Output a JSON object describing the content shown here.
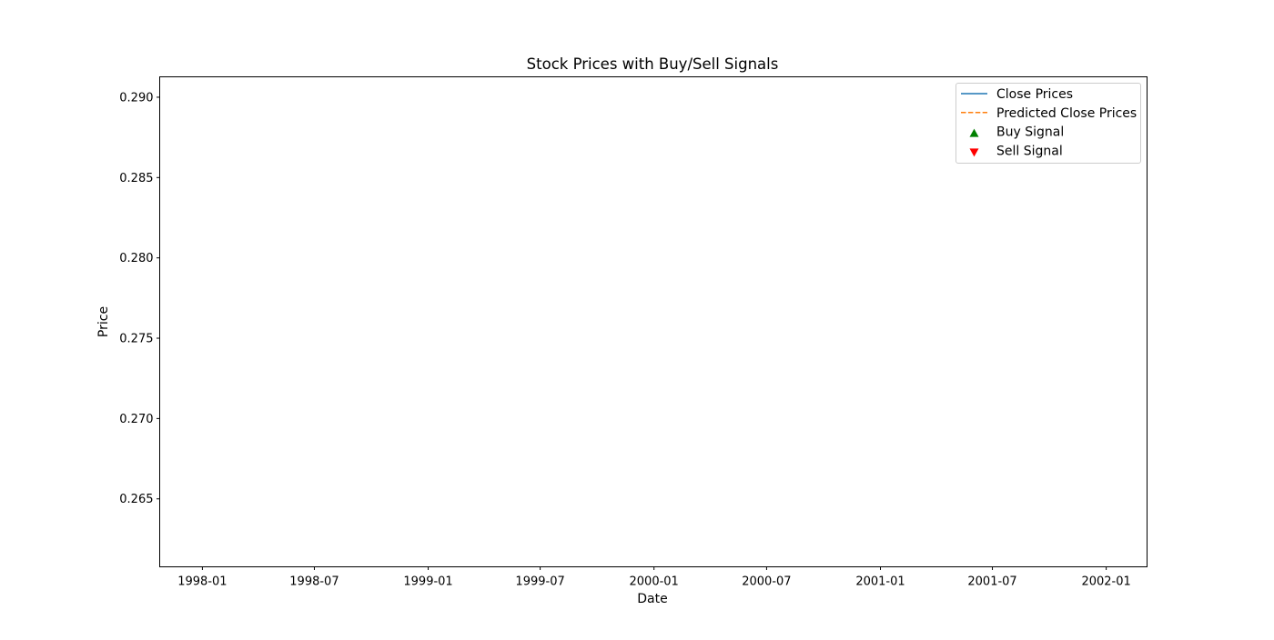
{
  "chart_data": {
    "type": "line",
    "title": "Stock Prices with Buy/Sell Signals",
    "xlabel": "Date",
    "ylabel": "Price",
    "x_axis_type": "date",
    "xlim": [
      "1997-10-24",
      "2002-03-08"
    ],
    "ylim": [
      0.26077,
      0.29127
    ],
    "x_ticks": [
      "1998-01",
      "1998-07",
      "1999-01",
      "1999-07",
      "2000-01",
      "2000-07",
      "2001-01",
      "2001-07",
      "2002-01"
    ],
    "y_ticks": [
      "0.265",
      "0.270",
      "0.275",
      "0.280",
      "0.285",
      "0.290"
    ],
    "grid": false,
    "legend_position": "top-right",
    "series": [
      {
        "name": "Close Prices",
        "kind": "line",
        "style": "solid",
        "color": "#1f77b4",
        "x": [],
        "y": []
      },
      {
        "name": "Predicted Close Prices",
        "kind": "line",
        "style": "dashed",
        "color": "#ff7f0e",
        "x": [],
        "y": []
      },
      {
        "name": "Buy Signal",
        "kind": "marker",
        "marker": "triangle-up",
        "color": "#008000",
        "x": [],
        "y": []
      },
      {
        "name": "Sell Signal",
        "kind": "marker",
        "marker": "triangle-down",
        "color": "#ff0000",
        "x": [],
        "y": []
      }
    ]
  }
}
